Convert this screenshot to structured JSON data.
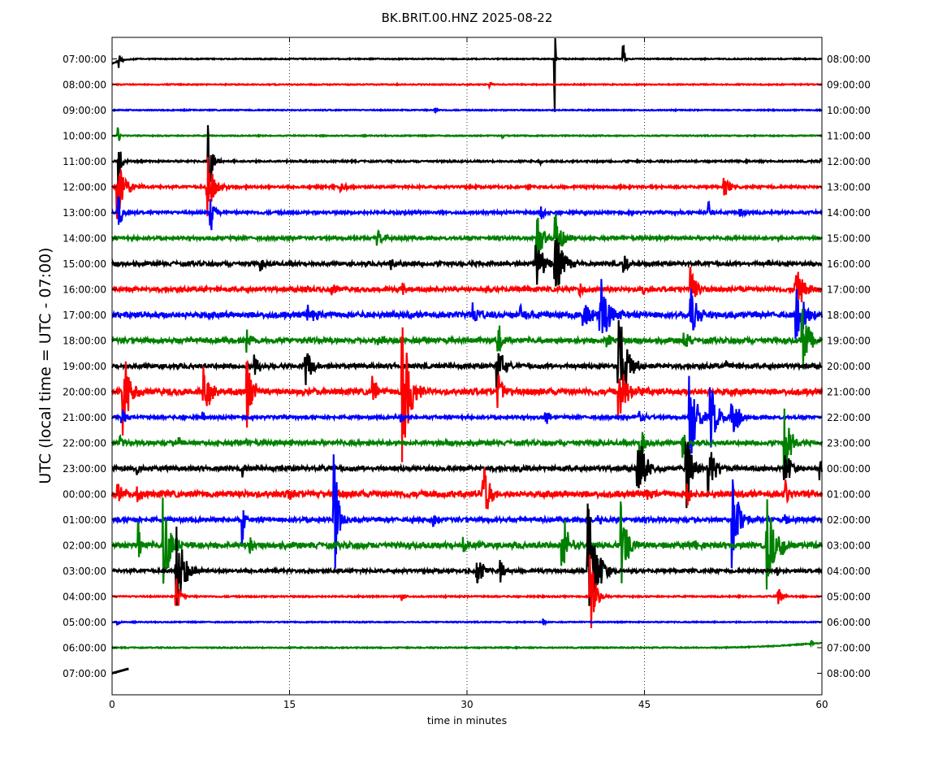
{
  "chart_data": {
    "type": "line",
    "title": "BK.BRIT.00.HNZ 2025-08-22",
    "xlabel": "time in minutes",
    "ylabel": "UTC (local time = UTC - 07:00)",
    "xlim": [
      0,
      60
    ],
    "x_ticks": [
      "0",
      "15",
      "30",
      "45",
      "60"
    ],
    "grid": "vertical dotted at 15, 30, 45",
    "trace_colors": [
      "#000000",
      "#ff0000",
      "#0000ff",
      "#008000"
    ],
    "left_labels": [
      "07:00:00",
      "08:00:00",
      "09:00:00",
      "10:00:00",
      "11:00:00",
      "12:00:00",
      "13:00:00",
      "14:00:00",
      "15:00:00",
      "16:00:00",
      "17:00:00",
      "18:00:00",
      "19:00:00",
      "20:00:00",
      "21:00:00",
      "22:00:00",
      "23:00:00",
      "00:00:00",
      "01:00:00",
      "02:00:00",
      "03:00:00",
      "04:00:00",
      "05:00:00",
      "06:00:00",
      "07:00:00"
    ],
    "right_labels": [
      "08:00:00",
      "09:00:00",
      "10:00:00",
      "11:00:00",
      "12:00:00",
      "13:00:00",
      "14:00:00",
      "15:00:00",
      "16:00:00",
      "17:00:00",
      "18:00:00",
      "19:00:00",
      "20:00:00",
      "21:00:00",
      "22:00:00",
      "23:00:00",
      "00:00:00",
      "01:00:00",
      "02:00:00",
      "03:00:00",
      "04:00:00",
      "05:00:00",
      "06:00:00",
      "07:00:00",
      "08:00:00"
    ],
    "series": [
      {
        "noise": 0.6,
        "events": [
          [
            0.6,
            14,
            0.15
          ],
          [
            37.4,
            90,
            0.05
          ],
          [
            43.2,
            30,
            0.1
          ]
        ]
      },
      {
        "noise": 0.6,
        "events": [
          [
            31.9,
            9,
            0.1
          ]
        ]
      },
      {
        "noise": 0.6,
        "events": [
          [
            27.3,
            7,
            0.1
          ]
        ]
      },
      {
        "noise": 0.6,
        "events": [
          [
            33,
            7,
            0.1
          ],
          [
            0.5,
            20,
            0.1
          ]
        ]
      },
      {
        "noise": 1.0,
        "events": [
          [
            0.5,
            40,
            0.2
          ],
          [
            8.1,
            52,
            0.3
          ],
          [
            36.1,
            5,
            0.3
          ],
          [
            59.8,
            8,
            0.2
          ]
        ]
      },
      {
        "noise": 1.4,
        "events": [
          [
            0.4,
            46,
            0.6
          ],
          [
            8.0,
            46,
            0.5
          ],
          [
            19.3,
            8,
            0.4
          ],
          [
            51.7,
            12,
            0.5
          ]
        ]
      },
      {
        "noise": 1.6,
        "events": [
          [
            0.5,
            28,
            0.3
          ],
          [
            8.3,
            30,
            0.3
          ],
          [
            36.2,
            14,
            0.3
          ],
          [
            50.4,
            15,
            0.3
          ],
          [
            53,
            8,
            0.3
          ]
        ]
      },
      {
        "noise": 1.8,
        "events": [
          [
            22.4,
            10,
            0.5
          ],
          [
            35.9,
            30,
            0.5
          ],
          [
            37.4,
            40,
            0.5
          ]
        ]
      },
      {
        "noise": 2.2,
        "events": [
          [
            12.5,
            10,
            0.4
          ],
          [
            23.5,
            8,
            0.5
          ],
          [
            35.8,
            36,
            0.6
          ],
          [
            37.4,
            44,
            0.6
          ],
          [
            43.2,
            12,
            0.4
          ],
          [
            55.5,
            6,
            0.3
          ]
        ]
      },
      {
        "noise": 2.4,
        "events": [
          [
            16.2,
            7,
            0.4
          ],
          [
            18.6,
            12,
            0.3
          ],
          [
            24.5,
            10,
            0.3
          ],
          [
            39.5,
            8,
            0.4
          ],
          [
            44.9,
            6,
            0.4
          ],
          [
            48.9,
            32,
            0.4
          ],
          [
            57.7,
            38,
            0.6
          ]
        ]
      },
      {
        "noise": 3.2,
        "events": [
          [
            16.5,
            12,
            0.6
          ],
          [
            30.5,
            14,
            0.6
          ],
          [
            34.5,
            12,
            0.6
          ],
          [
            39.8,
            18,
            0.7
          ],
          [
            41.2,
            60,
            0.6
          ],
          [
            48.9,
            40,
            0.5
          ],
          [
            57.8,
            60,
            0.6
          ]
        ]
      },
      {
        "noise": 2.8,
        "events": [
          [
            11.4,
            20,
            0.4
          ],
          [
            22.5,
            6,
            0.8
          ],
          [
            32.6,
            26,
            0.4
          ],
          [
            41.8,
            10,
            0.5
          ],
          [
            48.3,
            12,
            0.5
          ],
          [
            58.3,
            50,
            0.5
          ]
        ]
      },
      {
        "noise": 2.4,
        "events": [
          [
            12.0,
            18,
            0.4
          ],
          [
            16.3,
            28,
            0.5
          ],
          [
            32.5,
            32,
            0.5
          ],
          [
            42.7,
            90,
            0.6
          ],
          [
            51.8,
            8,
            0.4
          ]
        ]
      },
      {
        "noise": 3.4,
        "events": [
          [
            0.9,
            62,
            0.5
          ],
          [
            7.7,
            40,
            0.5
          ],
          [
            11.4,
            50,
            0.4
          ],
          [
            22.0,
            20,
            0.4
          ],
          [
            24.5,
            100,
            0.6
          ],
          [
            32.6,
            26,
            0.4
          ],
          [
            42.8,
            50,
            0.5
          ],
          [
            44.5,
            6,
            0.4
          ]
        ]
      },
      {
        "noise": 1.8,
        "events": [
          [
            0.8,
            20,
            0.2
          ],
          [
            7.6,
            12,
            0.2
          ],
          [
            24.4,
            8,
            0.2
          ],
          [
            36.6,
            16,
            0.3
          ],
          [
            44.5,
            20,
            0.4
          ],
          [
            48.8,
            70,
            0.5
          ],
          [
            50.5,
            50,
            0.5
          ],
          [
            52.3,
            40,
            0.5
          ]
        ]
      },
      {
        "noise": 2.4,
        "events": [
          [
            0.6,
            12,
            0.3
          ],
          [
            5.6,
            12,
            0.3
          ],
          [
            11.3,
            10,
            0.2
          ],
          [
            44.6,
            34,
            0.3
          ],
          [
            48.2,
            24,
            0.4
          ],
          [
            56.8,
            60,
            0.4
          ]
        ]
      },
      {
        "noise": 2.6,
        "events": [
          [
            2.1,
            10,
            0.2
          ],
          [
            11.0,
            10,
            0.2
          ],
          [
            34.4,
            8,
            0.2
          ],
          [
            44.4,
            60,
            0.5
          ],
          [
            48.5,
            56,
            0.5
          ],
          [
            50.4,
            40,
            0.5
          ],
          [
            56.8,
            26,
            0.6
          ],
          [
            59.8,
            20,
            0.4
          ]
        ]
      },
      {
        "noise": 3.6,
        "events": [
          [
            0.4,
            20,
            0.3
          ],
          [
            2.1,
            14,
            0.3
          ],
          [
            14.9,
            12,
            0.3
          ],
          [
            18.7,
            12,
            0.3
          ],
          [
            31.3,
            50,
            0.5
          ],
          [
            45.0,
            10,
            0.3
          ],
          [
            48.6,
            20,
            0.3
          ],
          [
            56.9,
            20,
            0.3
          ]
        ]
      },
      {
        "noise": 2.4,
        "events": [
          [
            11.0,
            60,
            0.1
          ],
          [
            18.7,
            120,
            0.3
          ],
          [
            27.1,
            12,
            0.4
          ],
          [
            41.1,
            8,
            0.3
          ],
          [
            52.4,
            70,
            0.5
          ],
          [
            56.9,
            8,
            0.3
          ]
        ]
      },
      {
        "noise": 3.2,
        "events": [
          [
            2.2,
            36,
            0.2
          ],
          [
            4.3,
            60,
            0.6
          ],
          [
            11.6,
            20,
            0.3
          ],
          [
            29.7,
            12,
            0.3
          ],
          [
            38.0,
            50,
            0.5
          ],
          [
            43.0,
            60,
            0.5
          ],
          [
            49.2,
            8,
            0.4
          ],
          [
            55.3,
            70,
            0.5
          ],
          [
            56.4,
            20,
            0.4
          ]
        ]
      },
      {
        "noise": 1.8,
        "events": [
          [
            5.4,
            64,
            0.6
          ],
          [
            30.8,
            30,
            0.4
          ],
          [
            32.8,
            16,
            0.4
          ],
          [
            40.2,
            90,
            0.7
          ],
          [
            56.2,
            8,
            0.3
          ]
        ]
      },
      {
        "noise": 0.8,
        "events": [
          [
            5.4,
            28,
            0.3
          ],
          [
            24.5,
            6,
            0.2
          ],
          [
            40.4,
            56,
            0.4
          ],
          [
            56.2,
            18,
            0.3
          ]
        ]
      },
      {
        "noise": 0.6,
        "events": [
          [
            0.4,
            6,
            0.2
          ],
          [
            36.4,
            5,
            0.2
          ]
        ]
      },
      {
        "noise": 0.6,
        "events": [
          [
            59.0,
            6,
            0.3
          ]
        ]
      },
      {
        "noise": 0.4,
        "events": []
      }
    ]
  }
}
